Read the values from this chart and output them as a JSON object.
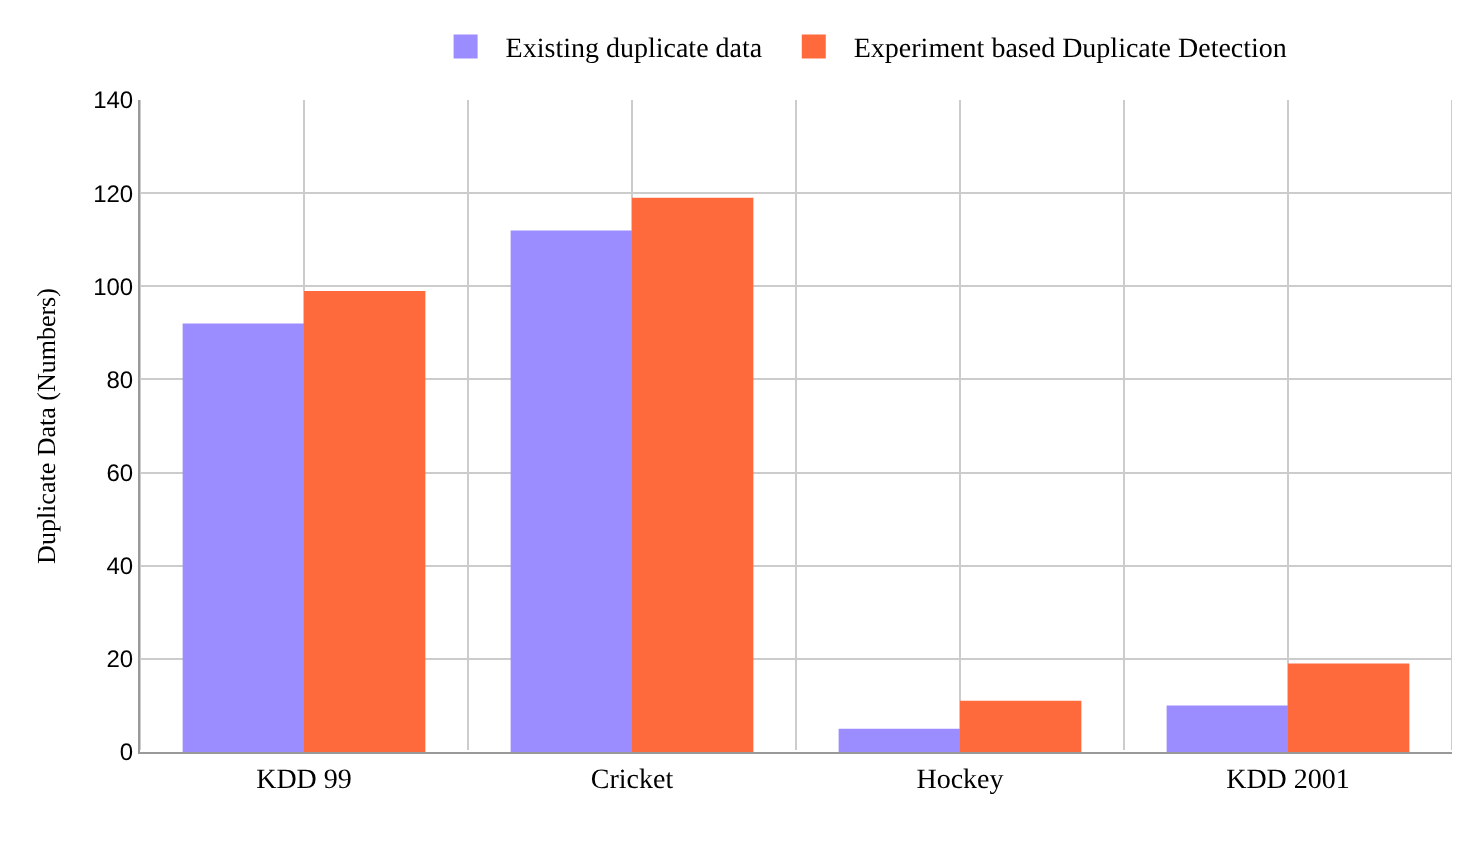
{
  "chart_data": {
    "type": "bar",
    "ylabel": "Duplicate Data (Numbers)",
    "categories": [
      "KDD 99",
      "Cricket",
      "Hockey",
      "KDD 2001"
    ],
    "series": [
      {
        "name": "Existing duplicate data",
        "color": "#9b8cff",
        "values": [
          92,
          112,
          5,
          10
        ]
      },
      {
        "name": "Experiment based Duplicate Detection",
        "color": "#ff6a3d",
        "values": [
          99,
          119,
          11,
          19
        ]
      }
    ],
    "ylim": [
      0,
      140
    ],
    "yticks": [
      0,
      20,
      40,
      60,
      80,
      100,
      120,
      140
    ],
    "grid": true,
    "legend": "top"
  }
}
